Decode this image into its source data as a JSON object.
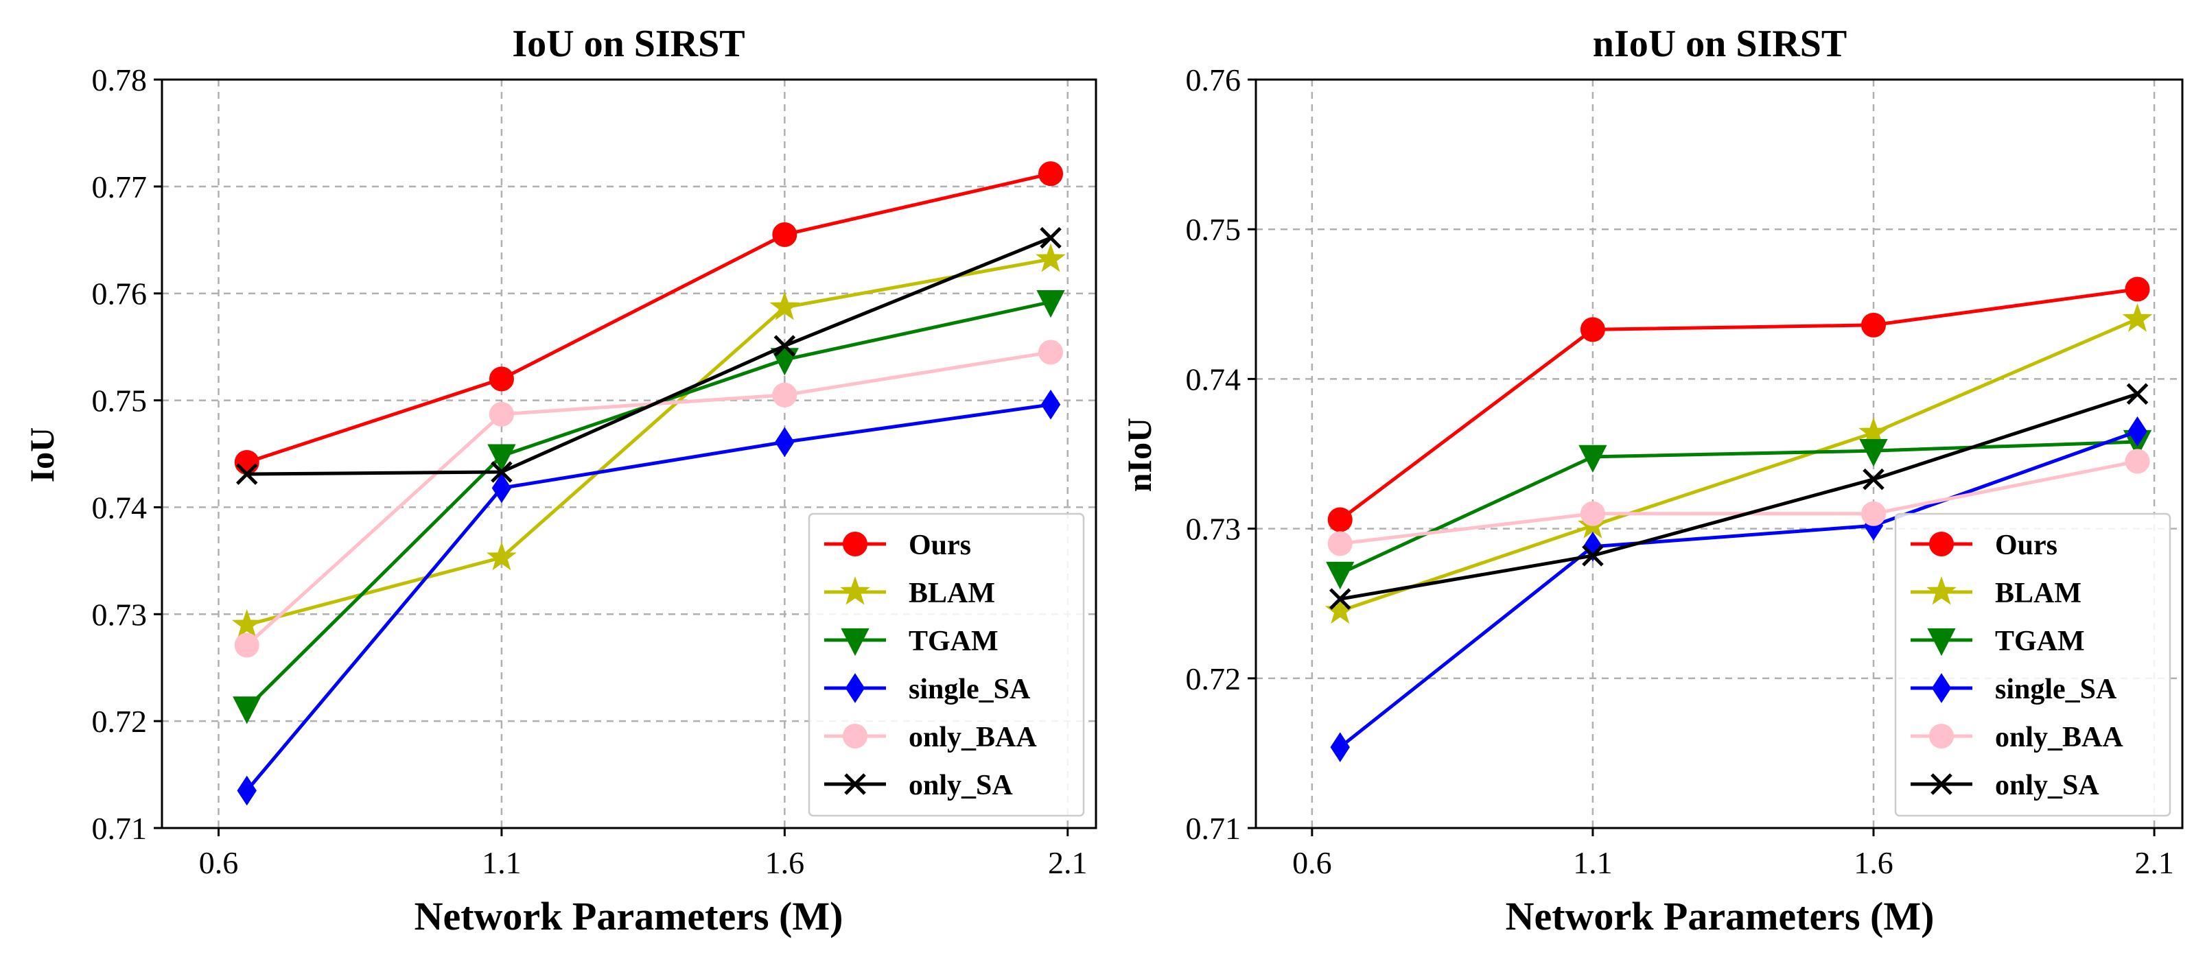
{
  "chart_data": [
    {
      "type": "line",
      "title": "IoU on SIRST",
      "xlabel": "Network Parameters (M)",
      "ylabel": "IoU",
      "x": [
        0.65,
        1.1,
        1.6,
        2.07
      ],
      "xticks": [
        0.6,
        1.1,
        1.6,
        2.1
      ],
      "xtick_labels": [
        "0.6",
        "1.1",
        "1.6",
        "2.1"
      ],
      "xlim": [
        0.5,
        2.15
      ],
      "ylim": [
        0.71,
        0.78
      ],
      "yticks": [
        0.71,
        0.72,
        0.73,
        0.74,
        0.75,
        0.76,
        0.77,
        0.78
      ],
      "ytick_labels": [
        "0.71",
        "0.72",
        "0.73",
        "0.74",
        "0.75",
        "0.76",
        "0.77",
        "0.78"
      ],
      "grid": true,
      "legend_position": "lower-right",
      "series": [
        {
          "name": "Ours",
          "color": "#ff0000",
          "marker": "circle",
          "values": [
            0.7442,
            0.752,
            0.7655,
            0.7712
          ]
        },
        {
          "name": "BLAM",
          "color": "#bfbf00",
          "marker": "star",
          "values": [
            0.729,
            0.7353,
            0.7587,
            0.7632
          ]
        },
        {
          "name": "TGAM",
          "color": "#008000",
          "marker": "triangle-down",
          "values": [
            0.7212,
            0.7448,
            0.7538,
            0.7592
          ]
        },
        {
          "name": "single_SA",
          "color": "#0000ff",
          "marker": "diamond",
          "values": [
            0.7135,
            0.7418,
            0.7461,
            0.7496
          ]
        },
        {
          "name": "only_BAA",
          "color": "#ffc0cb",
          "marker": "circle",
          "values": [
            0.7271,
            0.7487,
            0.7505,
            0.7545
          ]
        },
        {
          "name": "only_SA",
          "color": "#000000",
          "marker": "x",
          "values": [
            0.7431,
            0.7433,
            0.7551,
            0.7652
          ]
        }
      ]
    },
    {
      "type": "line",
      "title": "nIoU on SIRST",
      "xlabel": "Network Parameters (M)",
      "ylabel": "nIoU",
      "x": [
        0.65,
        1.1,
        1.6,
        2.07
      ],
      "xticks": [
        0.6,
        1.1,
        1.6,
        2.1
      ],
      "xtick_labels": [
        "0.6",
        "1.1",
        "1.6",
        "2.1"
      ],
      "xlim": [
        0.5,
        2.15
      ],
      "ylim": [
        0.71,
        0.76
      ],
      "yticks": [
        0.71,
        0.72,
        0.73,
        0.74,
        0.75,
        0.76
      ],
      "ytick_labels": [
        "0.71",
        "0.72",
        "0.73",
        "0.74",
        "0.75",
        "0.76"
      ],
      "grid": true,
      "legend_position": "lower-right",
      "series": [
        {
          "name": "Ours",
          "color": "#ff0000",
          "marker": "circle",
          "values": [
            0.7306,
            0.7433,
            0.7436,
            0.746
          ]
        },
        {
          "name": "BLAM",
          "color": "#bfbf00",
          "marker": "star",
          "values": [
            0.7245,
            0.7302,
            0.7364,
            0.744
          ]
        },
        {
          "name": "TGAM",
          "color": "#008000",
          "marker": "triangle-down",
          "values": [
            0.727,
            0.7348,
            0.7352,
            0.7358
          ]
        },
        {
          "name": "single_SA",
          "color": "#0000ff",
          "marker": "diamond",
          "values": [
            0.7154,
            0.7288,
            0.7302,
            0.7365
          ]
        },
        {
          "name": "only_BAA",
          "color": "#ffc0cb",
          "marker": "circle",
          "values": [
            0.729,
            0.731,
            0.731,
            0.7345
          ]
        },
        {
          "name": "only_SA",
          "color": "#000000",
          "marker": "x",
          "values": [
            0.7253,
            0.7282,
            0.7333,
            0.739
          ]
        }
      ]
    }
  ]
}
